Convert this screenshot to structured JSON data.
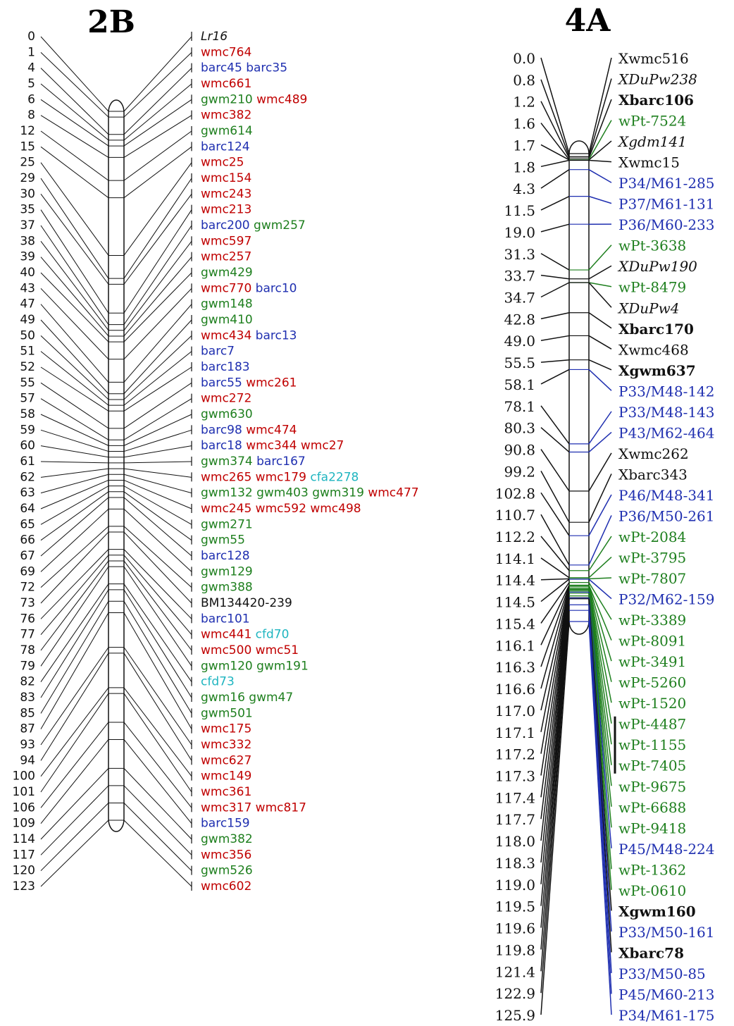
{
  "colors": {
    "black": "#111111",
    "red": "#c00000",
    "blue": "#1f2fb0",
    "green": "#1e7f1e",
    "cyan": "#1fb5c0"
  },
  "map_2b": {
    "title": "2B",
    "rows": [
      {
        "pos": "0",
        "markers": [
          {
            "t": "Lr16",
            "c": "black",
            "i": true
          }
        ]
      },
      {
        "pos": "1",
        "markers": [
          {
            "t": "wmc764",
            "c": "red"
          }
        ]
      },
      {
        "pos": "4",
        "markers": [
          {
            "t": "barc45",
            "c": "blue"
          },
          {
            "t": "barc35",
            "c": "blue"
          }
        ]
      },
      {
        "pos": "5",
        "markers": [
          {
            "t": "wmc661",
            "c": "red"
          }
        ]
      },
      {
        "pos": "6",
        "markers": [
          {
            "t": "gwm210",
            "c": "green"
          },
          {
            "t": "wmc489",
            "c": "red"
          }
        ]
      },
      {
        "pos": "8",
        "markers": [
          {
            "t": "wmc382",
            "c": "red"
          }
        ]
      },
      {
        "pos": "12",
        "markers": [
          {
            "t": "gwm614",
            "c": "green"
          }
        ]
      },
      {
        "pos": "15",
        "markers": [
          {
            "t": "barc124",
            "c": "blue"
          }
        ]
      },
      {
        "pos": "25",
        "markers": [
          {
            "t": "wmc25",
            "c": "red"
          }
        ]
      },
      {
        "pos": "29",
        "markers": [
          {
            "t": "wmc154",
            "c": "red"
          }
        ]
      },
      {
        "pos": "30",
        "markers": [
          {
            "t": "wmc243",
            "c": "red"
          }
        ]
      },
      {
        "pos": "35",
        "markers": [
          {
            "t": "wmc213",
            "c": "red"
          }
        ]
      },
      {
        "pos": "37",
        "markers": [
          {
            "t": "barc200",
            "c": "blue"
          },
          {
            "t": "gwm257",
            "c": "green"
          }
        ]
      },
      {
        "pos": "38",
        "markers": [
          {
            "t": "wmc597",
            "c": "red"
          }
        ]
      },
      {
        "pos": "39",
        "markers": [
          {
            "t": "wmc257",
            "c": "red"
          }
        ]
      },
      {
        "pos": "40",
        "markers": [
          {
            "t": "gwm429",
            "c": "green"
          }
        ]
      },
      {
        "pos": "43",
        "markers": [
          {
            "t": "wmc770",
            "c": "red"
          },
          {
            "t": "barc10",
            "c": "blue"
          }
        ]
      },
      {
        "pos": "47",
        "markers": [
          {
            "t": "gwm148",
            "c": "green"
          }
        ]
      },
      {
        "pos": "49",
        "markers": [
          {
            "t": "gwm410",
            "c": "green"
          }
        ]
      },
      {
        "pos": "50",
        "markers": [
          {
            "t": "wmc434",
            "c": "red"
          },
          {
            "t": "barc13",
            "c": "blue"
          }
        ]
      },
      {
        "pos": "51",
        "markers": [
          {
            "t": "barc7",
            "c": "blue"
          }
        ]
      },
      {
        "pos": "52",
        "markers": [
          {
            "t": "barc183",
            "c": "blue"
          }
        ]
      },
      {
        "pos": "55",
        "markers": [
          {
            "t": "barc55",
            "c": "blue"
          },
          {
            "t": "wmc261",
            "c": "red"
          }
        ]
      },
      {
        "pos": "57",
        "markers": [
          {
            "t": "wmc272",
            "c": "red"
          }
        ]
      },
      {
        "pos": "58",
        "markers": [
          {
            "t": "gwm630",
            "c": "green"
          }
        ]
      },
      {
        "pos": "59",
        "markers": [
          {
            "t": "barc98",
            "c": "blue"
          },
          {
            "t": "wmc474",
            "c": "red"
          }
        ]
      },
      {
        "pos": "60",
        "markers": [
          {
            "t": "barc18",
            "c": "blue"
          },
          {
            "t": "wmc344",
            "c": "red"
          },
          {
            "t": "wmc27",
            "c": "red"
          }
        ]
      },
      {
        "pos": "61",
        "markers": [
          {
            "t": "gwm374",
            "c": "green"
          },
          {
            "t": "barc167",
            "c": "blue"
          }
        ]
      },
      {
        "pos": "62",
        "markers": [
          {
            "t": "wmc265",
            "c": "red"
          },
          {
            "t": "wmc179",
            "c": "red"
          },
          {
            "t": "cfa2278",
            "c": "cyan"
          }
        ]
      },
      {
        "pos": "63",
        "markers": [
          {
            "t": "gwm132",
            "c": "green"
          },
          {
            "t": "gwm403",
            "c": "green"
          },
          {
            "t": "gwm319",
            "c": "green"
          },
          {
            "t": "wmc477",
            "c": "red"
          }
        ]
      },
      {
        "pos": "64",
        "markers": [
          {
            "t": "wmc245",
            "c": "red"
          },
          {
            "t": "wmc592",
            "c": "red"
          },
          {
            "t": "wmc498",
            "c": "red"
          }
        ]
      },
      {
        "pos": "65",
        "markers": [
          {
            "t": "gwm271",
            "c": "green"
          }
        ]
      },
      {
        "pos": "66",
        "markers": [
          {
            "t": "gwm55",
            "c": "green"
          }
        ]
      },
      {
        "pos": "67",
        "markers": [
          {
            "t": "barc128",
            "c": "blue"
          }
        ]
      },
      {
        "pos": "69",
        "markers": [
          {
            "t": "gwm129",
            "c": "green"
          }
        ]
      },
      {
        "pos": "72",
        "markers": [
          {
            "t": "gwm388",
            "c": "green"
          }
        ]
      },
      {
        "pos": "73",
        "markers": [
          {
            "t": "BM134420-239",
            "c": "black"
          }
        ]
      },
      {
        "pos": "76",
        "markers": [
          {
            "t": "barc101",
            "c": "blue"
          }
        ]
      },
      {
        "pos": "77",
        "markers": [
          {
            "t": "wmc441",
            "c": "red"
          },
          {
            "t": "cfd70",
            "c": "cyan"
          }
        ]
      },
      {
        "pos": "78",
        "markers": [
          {
            "t": "wmc500",
            "c": "red"
          },
          {
            "t": "wmc51",
            "c": "red"
          }
        ]
      },
      {
        "pos": "79",
        "markers": [
          {
            "t": "gwm120",
            "c": "green"
          },
          {
            "t": "gwm191",
            "c": "green"
          }
        ]
      },
      {
        "pos": "82",
        "markers": [
          {
            "t": "cfd73",
            "c": "cyan"
          }
        ]
      },
      {
        "pos": "83",
        "markers": [
          {
            "t": "gwm16",
            "c": "green"
          },
          {
            "t": "gwm47",
            "c": "green"
          }
        ]
      },
      {
        "pos": "85",
        "markers": [
          {
            "t": "gwm501",
            "c": "green"
          }
        ]
      },
      {
        "pos": "87",
        "markers": [
          {
            "t": "wmc175",
            "c": "red"
          }
        ]
      },
      {
        "pos": "93",
        "markers": [
          {
            "t": "wmc332",
            "c": "red"
          }
        ]
      },
      {
        "pos": "94",
        "markers": [
          {
            "t": "wmc627",
            "c": "red"
          }
        ]
      },
      {
        "pos": "100",
        "markers": [
          {
            "t": "wmc149",
            "c": "red"
          }
        ]
      },
      {
        "pos": "101",
        "markers": [
          {
            "t": "wmc361",
            "c": "red"
          }
        ]
      },
      {
        "pos": "106",
        "markers": [
          {
            "t": "wmc317",
            "c": "red"
          },
          {
            "t": "wmc817",
            "c": "red"
          }
        ]
      },
      {
        "pos": "109",
        "markers": [
          {
            "t": "barc159",
            "c": "blue"
          }
        ]
      },
      {
        "pos": "114",
        "markers": [
          {
            "t": "gwm382",
            "c": "green"
          }
        ]
      },
      {
        "pos": "117",
        "markers": [
          {
            "t": "wmc356",
            "c": "red"
          }
        ]
      },
      {
        "pos": "120",
        "markers": [
          {
            "t": "gwm526",
            "c": "green"
          }
        ]
      },
      {
        "pos": "123",
        "markers": [
          {
            "t": "wmc602",
            "c": "red"
          }
        ]
      }
    ]
  },
  "map_4a": {
    "title": "4A",
    "positions": [
      "0.0",
      "0.8",
      "1.2",
      "1.6",
      "1.7",
      "1.8",
      "4.3",
      "11.5",
      "19.0",
      "31.3",
      "33.7",
      "34.7",
      "42.8",
      "49.0",
      "55.5",
      "58.1",
      "78.1",
      "80.3",
      "90.8",
      "99.2",
      "102.8",
      "110.7",
      "112.2",
      "114.1",
      "114.4",
      "114.5",
      "115.4",
      "116.1",
      "116.3",
      "116.6",
      "117.0",
      "117.1",
      "117.2",
      "117.3",
      "117.4",
      "117.7",
      "118.0",
      "118.3",
      "119.0",
      "119.5",
      "119.6",
      "119.8",
      "121.4",
      "122.9",
      "125.9"
    ],
    "markers": [
      {
        "t": "Xwmc516",
        "c": "black"
      },
      {
        "t": "XDuPw238",
        "c": "black",
        "i": true
      },
      {
        "t": "Xbarc106",
        "c": "black",
        "b": true
      },
      {
        "t": "wPt-7524",
        "c": "green"
      },
      {
        "t": "Xgdm141",
        "c": "black",
        "i": true
      },
      {
        "t": "Xwmc15",
        "c": "black"
      },
      {
        "t": "P34/M61-285",
        "c": "blue"
      },
      {
        "t": "P37/M61-131",
        "c": "blue"
      },
      {
        "t": "P36/M60-233",
        "c": "blue"
      },
      {
        "t": "wPt-3638",
        "c": "green"
      },
      {
        "t": "XDuPw190",
        "c": "black",
        "i": true
      },
      {
        "t": "wPt-8479",
        "c": "green"
      },
      {
        "t": "XDuPw4",
        "c": "black",
        "i": true
      },
      {
        "t": "Xbarc170",
        "c": "black",
        "b": true
      },
      {
        "t": "Xwmc468",
        "c": "black"
      },
      {
        "t": "Xgwm637",
        "c": "black",
        "b": true
      },
      {
        "t": "P33/M48-142",
        "c": "blue"
      },
      {
        "t": "P33/M48-143",
        "c": "blue"
      },
      {
        "t": "P43/M62-464",
        "c": "blue"
      },
      {
        "t": "Xwmc262",
        "c": "black"
      },
      {
        "t": "Xbarc343",
        "c": "black"
      },
      {
        "t": "P46/M48-341",
        "c": "blue"
      },
      {
        "t": "P36/M50-261",
        "c": "blue"
      },
      {
        "t": "wPt-2084",
        "c": "green"
      },
      {
        "t": "wPt-3795",
        "c": "green"
      },
      {
        "t": "wPt-7807",
        "c": "green"
      },
      {
        "t": "P32/M62-159",
        "c": "blue"
      },
      {
        "t": "wPt-3389",
        "c": "green"
      },
      {
        "t": "wPt-8091",
        "c": "green"
      },
      {
        "t": "wPt-3491",
        "c": "green"
      },
      {
        "t": "wPt-5260",
        "c": "green"
      },
      {
        "t": "wPt-1520",
        "c": "green"
      },
      {
        "t": "wPt-4487",
        "c": "green"
      },
      {
        "t": "wPt-1155",
        "c": "green"
      },
      {
        "t": "wPt-7405",
        "c": "green"
      },
      {
        "t": "wPt-9675",
        "c": "green"
      },
      {
        "t": "wPt-6688",
        "c": "green"
      },
      {
        "t": "wPt-9418",
        "c": "green"
      },
      {
        "t": "P45/M48-224",
        "c": "blue"
      },
      {
        "t": "wPt-1362",
        "c": "green"
      },
      {
        "t": "wPt-0610",
        "c": "green"
      },
      {
        "t": "Xgwm160",
        "c": "black",
        "b": true
      },
      {
        "t": "P33/M50-161",
        "c": "blue"
      },
      {
        "t": "Xbarc78",
        "c": "black",
        "b": true
      },
      {
        "t": "P33/M50-85",
        "c": "blue"
      },
      {
        "t": "P45/M60-213",
        "c": "blue"
      },
      {
        "t": "P34/M61-175",
        "c": "blue"
      }
    ]
  }
}
